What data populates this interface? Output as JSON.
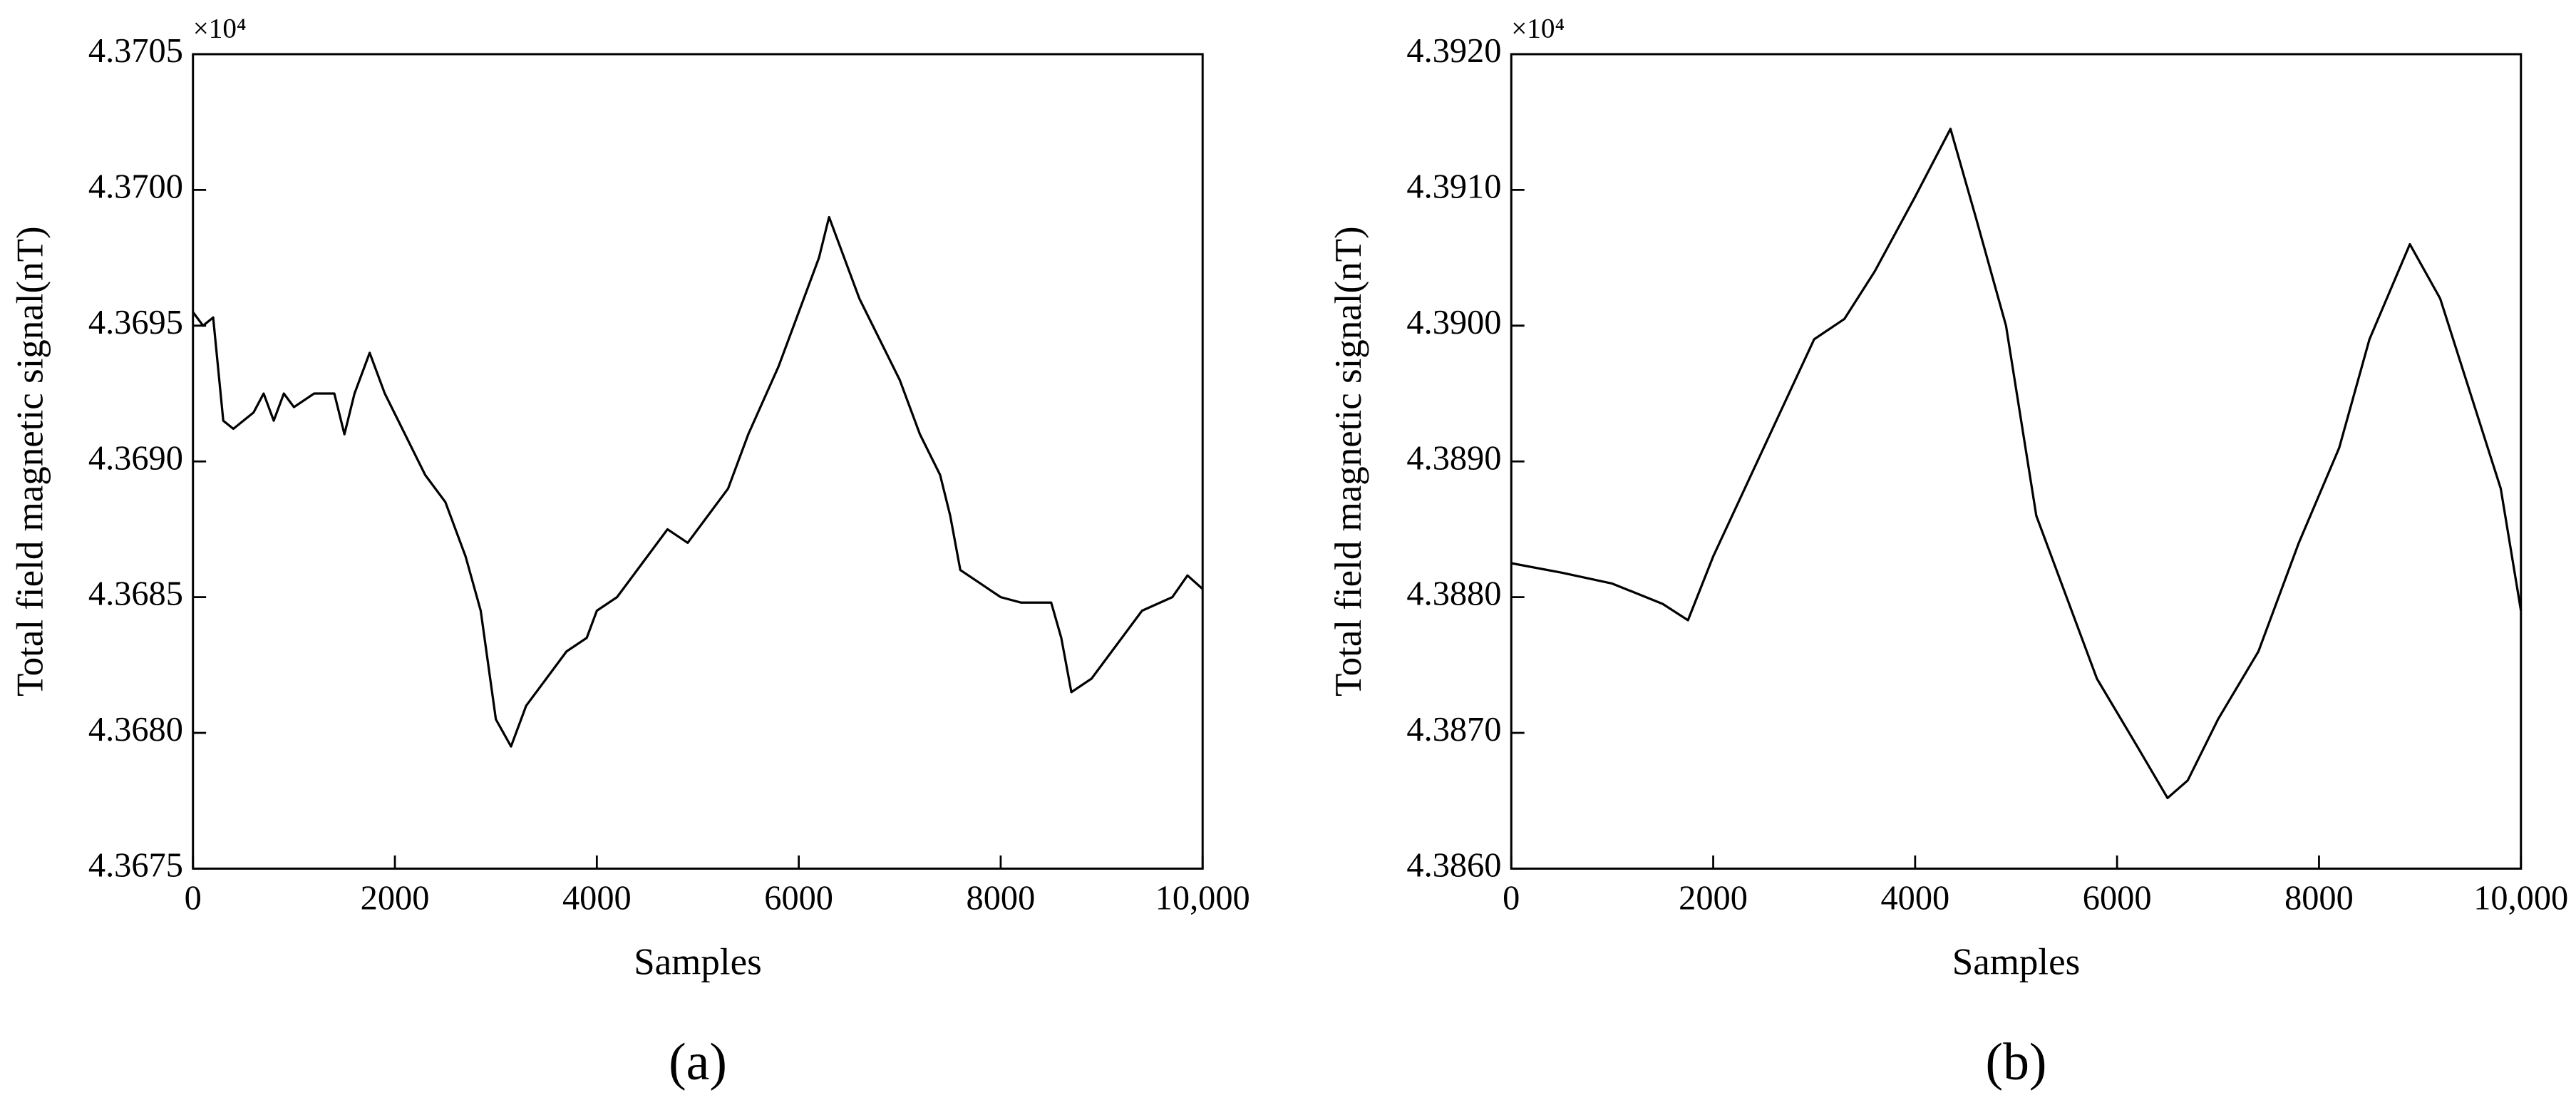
{
  "chart_data": [
    {
      "type": "line",
      "label": "(a)",
      "multiplier": "×10⁴",
      "xlabel": "Samples",
      "ylabel": "Total field magnetic signal(nT)",
      "color": "#000000",
      "xlim": [
        0,
        10000
      ],
      "xticks": [
        0,
        2000,
        4000,
        6000,
        8000,
        {
          "value": 10000,
          "label": "10,000"
        }
      ],
      "ylim": [
        4.3675,
        4.3705
      ],
      "yticks": [
        {
          "value": 4.3675,
          "label": "4.3675"
        },
        {
          "value": 4.368,
          "label": "4.3680"
        },
        {
          "value": 4.3685,
          "label": "4.3685"
        },
        {
          "value": 4.369,
          "label": "4.3690"
        },
        {
          "value": 4.3695,
          "label": "4.3695"
        },
        {
          "value": 4.37,
          "label": "4.3700"
        },
        {
          "value": 4.3705,
          "label": "4.3705"
        }
      ],
      "x": [
        0,
        100,
        200,
        300,
        400,
        600,
        700,
        800,
        900,
        1000,
        1200,
        1400,
        1500,
        1600,
        1750,
        1900,
        2100,
        2300,
        2500,
        2700,
        2850,
        3000,
        3150,
        3300,
        3500,
        3700,
        3900,
        4000,
        4200,
        4500,
        4700,
        4900,
        5100,
        5300,
        5500,
        5800,
        6000,
        6200,
        6300,
        6450,
        6600,
        6800,
        7000,
        7200,
        7400,
        7500,
        7600,
        7800,
        8000,
        8200,
        8500,
        8600,
        8700,
        8900,
        9100,
        9400,
        9700,
        9850,
        10000
      ],
      "values": [
        4.36955,
        4.3695,
        4.36953,
        4.36915,
        4.36912,
        4.36918,
        4.36925,
        4.36915,
        4.36925,
        4.3692,
        4.36925,
        4.36925,
        4.3691,
        4.36925,
        4.3694,
        4.36925,
        4.3691,
        4.36895,
        4.36885,
        4.36865,
        4.36845,
        4.36805,
        4.36795,
        4.3681,
        4.3682,
        4.3683,
        4.36835,
        4.36845,
        4.3685,
        4.36865,
        4.36875,
        4.3687,
        4.3688,
        4.3689,
        4.3691,
        4.36935,
        4.36955,
        4.36975,
        4.3699,
        4.36975,
        4.3696,
        4.36945,
        4.3693,
        4.3691,
        4.36895,
        4.3688,
        4.3686,
        4.36855,
        4.3685,
        4.36848,
        4.36848,
        4.36835,
        4.36815,
        4.3682,
        4.3683,
        4.36845,
        4.3685,
        4.36858,
        4.36853
      ]
    },
    {
      "type": "line",
      "label": "(b)",
      "multiplier": "×10⁴",
      "xlabel": "Samples",
      "ylabel": "Total field magnetic signal(nT)",
      "color": "#000000",
      "xlim": [
        0,
        10000
      ],
      "xticks": [
        0,
        2000,
        4000,
        6000,
        8000,
        {
          "value": 10000,
          "label": "10,000"
        }
      ],
      "ylim": [
        4.386,
        4.392
      ],
      "yticks": [
        {
          "value": 4.386,
          "label": "4.3860"
        },
        {
          "value": 4.387,
          "label": "4.3870"
        },
        {
          "value": 4.388,
          "label": "4.3880"
        },
        {
          "value": 4.389,
          "label": "4.3890"
        },
        {
          "value": 4.39,
          "label": "4.3900"
        },
        {
          "value": 4.391,
          "label": "4.3910"
        },
        {
          "value": 4.392,
          "label": "4.3920"
        }
      ],
      "x": [
        0,
        500,
        1000,
        1500,
        1750,
        2000,
        2500,
        3000,
        3300,
        3600,
        4000,
        4350,
        4600,
        4900,
        5200,
        5400,
        5800,
        6200,
        6500,
        6700,
        7000,
        7400,
        7800,
        8200,
        8500,
        8900,
        9200,
        9500,
        9800,
        10000
      ],
      "values": [
        4.38825,
        4.38818,
        4.3881,
        4.38795,
        4.38783,
        4.3883,
        4.3891,
        4.3899,
        4.39005,
        4.3904,
        4.39095,
        4.39145,
        4.3908,
        4.39,
        4.3886,
        4.3882,
        4.3874,
        4.3869,
        4.38652,
        4.38665,
        4.3871,
        4.3876,
        4.3884,
        4.3891,
        4.3899,
        4.3906,
        4.3902,
        4.3895,
        4.3888,
        4.3879
      ]
    }
  ]
}
